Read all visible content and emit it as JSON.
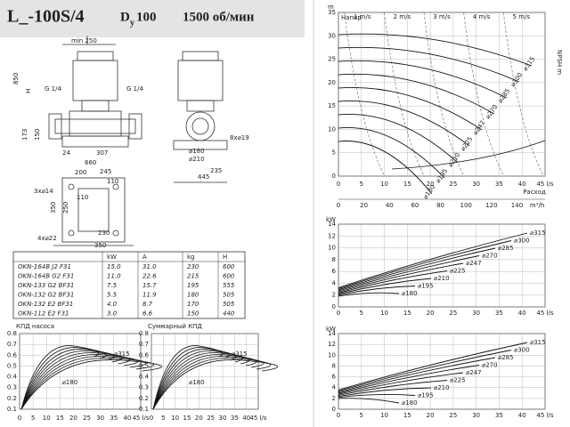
{
  "header": {
    "model": "L_-100S/4",
    "dn": "D",
    "dn_sub": "y",
    "dn_size": "100",
    "speed": "1500 об/мин"
  },
  "drawing": {
    "labels": [
      "min 250",
      "850",
      "H",
      "G 1/4",
      "G 1/4",
      "173",
      "150",
      "24",
      "307",
      "660",
      "⌀180",
      "⌀210",
      "8x⌀19",
      "235",
      "445",
      "245",
      "110",
      "200",
      "110",
      "3x⌀14",
      "350",
      "250",
      "4x⌀22",
      "230",
      "350"
    ]
  },
  "table": {
    "columns": [
      "kW",
      "A",
      "kg",
      "H"
    ],
    "rows": [
      [
        "OKN-164B J2 F31",
        "15.0",
        "31.0",
        "230",
        "600"
      ],
      [
        "OKN-164B G2 F31",
        "11.0",
        "22.6",
        "215",
        "600"
      ],
      [
        "OKN-133 G2 BF31",
        "7.5",
        "15.7",
        "195",
        "555"
      ],
      [
        "OKN-132 G2 BF31",
        "5.5",
        "11.9",
        "180",
        "505"
      ],
      [
        "OKN-132 E2 BF31",
        "4.0",
        "8.7",
        "170",
        "505"
      ],
      [
        "OKN-112 E2 F31",
        "3.0",
        "6.6",
        "150",
        "440"
      ]
    ]
  },
  "efficiency_pump": {
    "title": "КПД насоса",
    "yticks": [
      "0.8",
      "0.7",
      "0.6",
      "0.5",
      "0.4",
      "0.3",
      "0.2",
      "0.1"
    ],
    "xticks": [
      "0",
      "5",
      "10",
      "15",
      "20",
      "25",
      "30",
      "35",
      "40",
      "45 l/s"
    ],
    "labels": [
      "⌀315",
      "⌀180"
    ]
  },
  "efficiency_total": {
    "title": "Суммарный КПД",
    "yticks": [
      "0.8",
      "0.7",
      "0.6",
      "0.5",
      "0.4",
      "0.3",
      "0.2",
      "0.1"
    ],
    "xticks": [
      "0",
      "5",
      "10",
      "15",
      "20",
      "25",
      "30",
      "35",
      "40",
      "45 l/s"
    ],
    "labels": [
      "⌀315",
      "⌀180"
    ]
  },
  "head": {
    "title": "Напор",
    "unit": "m",
    "yticks": [
      "35",
      "30",
      "25",
      "20",
      "15",
      "10",
      "5",
      "0"
    ],
    "xticks": [
      "0",
      "5",
      "10",
      "15",
      "20",
      "25",
      "30",
      "35",
      "40",
      "45 l/s"
    ],
    "flow_ticks": [
      "0",
      "20",
      "40",
      "60",
      "80",
      "100",
      "120",
      "140",
      "m³/h"
    ],
    "flow_label": "Расход",
    "npsh_label": "NPSH m",
    "velocities": [
      "1 m/s",
      "2 m/s",
      "3 m/s",
      "4 m/s",
      "5 m/s"
    ],
    "curves": [
      "⌀315",
      "⌀300",
      "⌀285",
      "⌀270",
      "⌀247",
      "⌀225",
      "⌀210",
      "⌀195",
      "⌀180"
    ]
  },
  "power_1": {
    "unit": "kW",
    "yticks": [
      "14",
      "12",
      "10",
      "8",
      "6",
      "4",
      "2",
      "0"
    ],
    "xticks": [
      "0",
      "5",
      "10",
      "15",
      "20",
      "25",
      "30",
      "35",
      "40",
      "45 l/s"
    ],
    "curves": [
      "⌀315",
      "⌀300",
      "⌀285",
      "⌀270",
      "⌀247",
      "⌀225",
      "⌀210",
      "⌀195",
      "⌀180"
    ]
  },
  "power_2": {
    "unit": "kW",
    "yticks": [
      "14",
      "12",
      "10",
      "8",
      "6",
      "4",
      "2",
      "0"
    ],
    "xticks": [
      "0",
      "5",
      "10",
      "15",
      "20",
      "25",
      "30",
      "35",
      "40",
      "45 l/s"
    ],
    "curves": [
      "⌀315",
      "⌀300",
      "⌀285",
      "⌀270",
      "⌀247",
      "⌀225",
      "⌀210",
      "⌀195",
      "⌀180"
    ]
  }
}
